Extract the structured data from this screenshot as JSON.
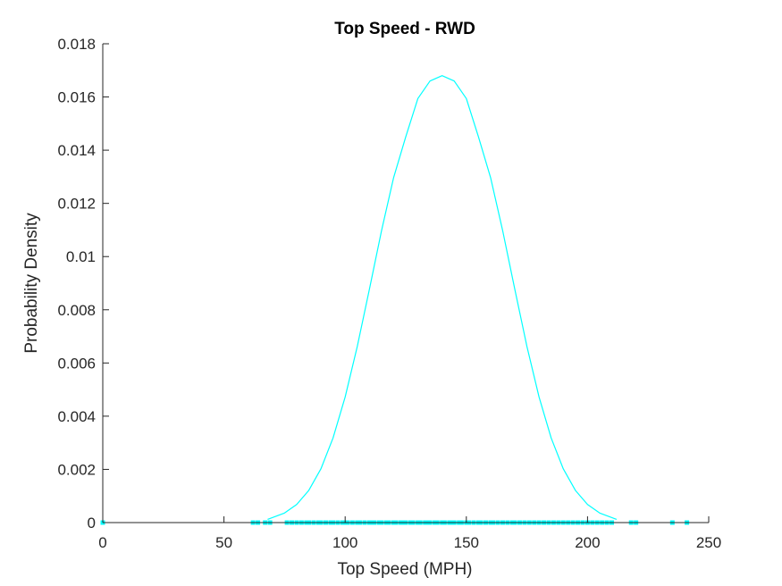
{
  "chart_data": {
    "type": "line",
    "title": "Top Speed - RWD",
    "xlabel": "Top Speed (MPH)",
    "ylabel": "Probability Density",
    "xlim": [
      0,
      250
    ],
    "ylim": [
      0,
      0.018
    ],
    "x_ticks": [
      0,
      50,
      100,
      150,
      200,
      250
    ],
    "x_tick_labels": [
      "0",
      "50",
      "100",
      "150",
      "200",
      "250"
    ],
    "y_ticks": [
      0,
      0.002,
      0.004,
      0.006,
      0.008,
      0.01,
      0.012,
      0.014,
      0.016,
      0.018
    ],
    "y_tick_labels": [
      "0",
      "0.002",
      "0.004",
      "0.006",
      "0.008",
      "0.01",
      "0.012",
      "0.014",
      "0.016",
      "0.018"
    ],
    "grid": false,
    "series": [
      {
        "kind": "density-curve",
        "color": "#00FFFF",
        "x": [
          68,
          75,
          80,
          85,
          90,
          95,
          100,
          105,
          110,
          115,
          120,
          125,
          130,
          135,
          140,
          145,
          150,
          155,
          160,
          165,
          170,
          175,
          180,
          185,
          190,
          195,
          200,
          205,
          212
        ],
        "y": [
          0.00012,
          0.00036,
          0.00068,
          0.00121,
          0.00202,
          0.00318,
          0.00472,
          0.00662,
          0.00877,
          0.01097,
          0.01297,
          0.0145,
          0.01594,
          0.0166,
          0.0168,
          0.0166,
          0.01594,
          0.0145,
          0.01297,
          0.01097,
          0.00877,
          0.00662,
          0.00472,
          0.00318,
          0.00202,
          0.00121,
          0.00068,
          0.00036,
          0.00012
        ]
      },
      {
        "kind": "data-points",
        "color": "#00FFFF",
        "x": [
          0,
          62,
          64,
          67,
          69,
          76,
          78,
          80,
          82,
          84,
          85,
          87,
          89,
          90,
          92,
          94,
          95,
          97,
          99,
          100,
          101,
          103,
          105,
          106,
          108,
          110,
          111,
          112,
          114,
          115,
          117,
          118,
          120,
          121,
          123,
          124,
          125,
          127,
          128,
          130,
          131,
          133,
          134,
          135,
          137,
          138,
          140,
          141,
          143,
          144,
          145,
          147,
          148,
          150,
          151,
          153,
          155,
          156,
          158,
          160,
          161,
          163,
          165,
          167,
          169,
          170,
          172,
          174,
          176,
          178,
          180,
          182,
          184,
          186,
          188,
          190,
          192,
          194,
          196,
          198,
          200,
          202,
          204,
          206,
          208,
          210,
          218,
          220,
          235,
          241
        ],
        "y_value": 0
      }
    ]
  }
}
